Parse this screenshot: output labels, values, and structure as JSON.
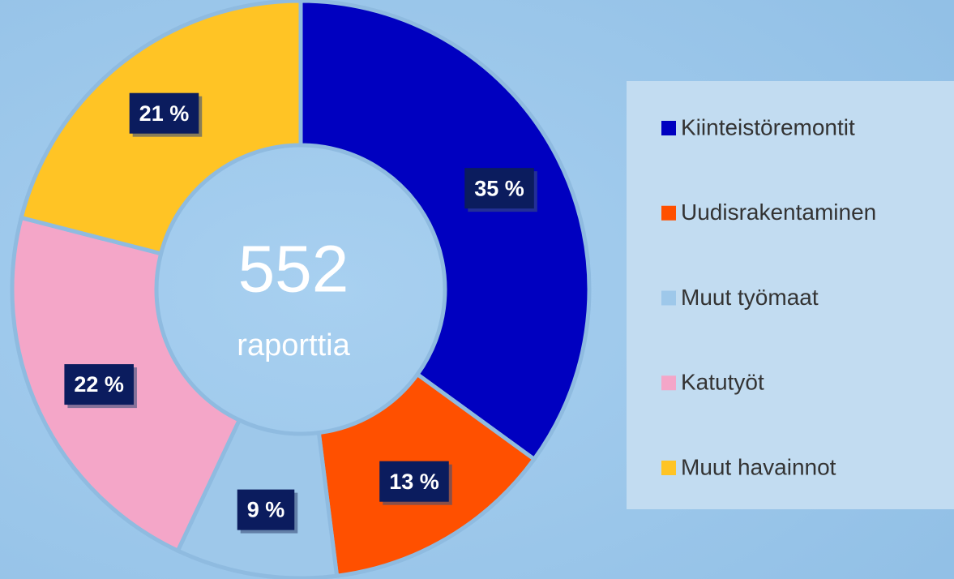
{
  "chart_data": {
    "type": "donut",
    "categories": [
      "Kiinteistöremontit",
      "Uudisrakentaminen",
      "Muut työmaat",
      "Katutyöt",
      "Muut havainnot"
    ],
    "values": [
      35,
      13,
      9,
      22,
      21
    ],
    "value_labels": [
      "35 %",
      "13 %",
      "9 %",
      "22 %",
      "21 %"
    ],
    "colors": [
      "#0000c0",
      "#ff5000",
      "#9ec8ea",
      "#f4a6c8",
      "#ffc425"
    ],
    "center_value": "552",
    "center_label": "raporttia",
    "legend": "right"
  }
}
